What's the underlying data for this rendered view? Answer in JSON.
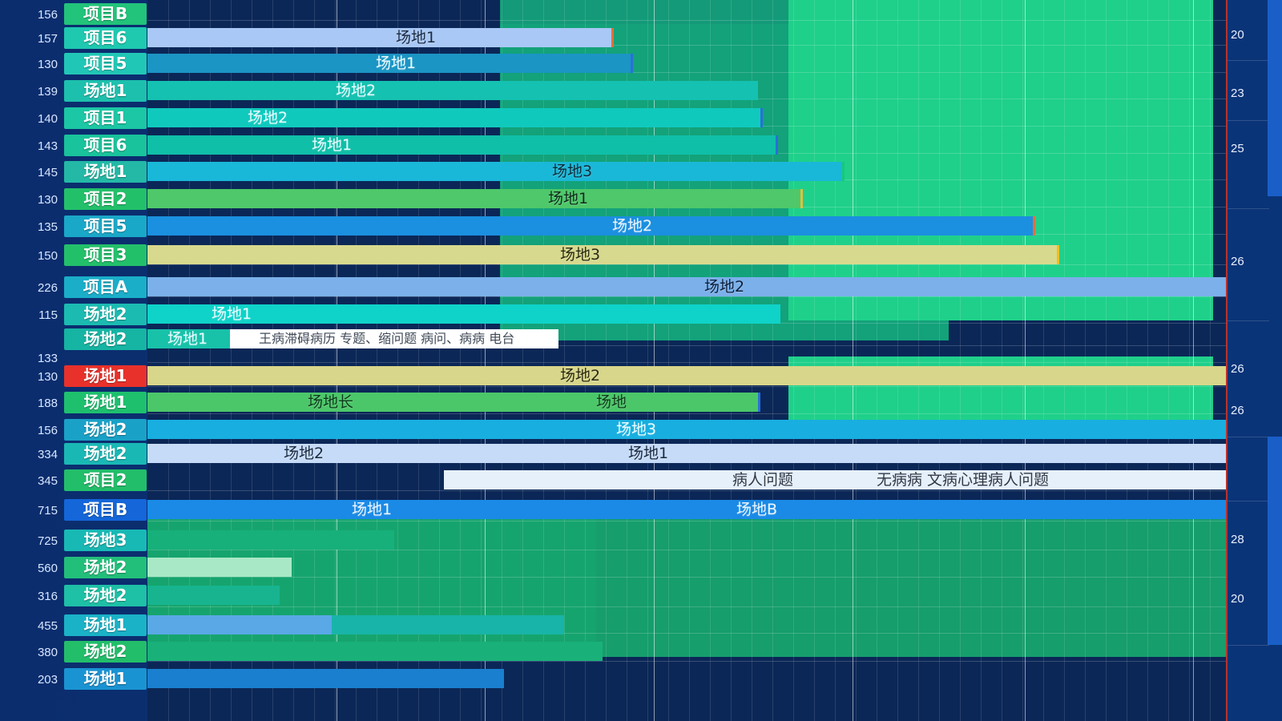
{
  "rows": [
    {
      "num": "156",
      "label": "项目B",
      "color": "#22c37a"
    },
    {
      "num": "157",
      "label": "项目6",
      "color": "#1ec9b0"
    },
    {
      "num": "130",
      "label": "项目5",
      "color": "#21c7b6"
    },
    {
      "num": "139",
      "label": "场地1",
      "color": "#1dc0ad"
    },
    {
      "num": "140",
      "label": "项目1",
      "color": "#1bc7a4"
    },
    {
      "num": "143",
      "label": "项目6",
      "color": "#19c39b"
    },
    {
      "num": "145",
      "label": "场地1",
      "color": "#23b9a6"
    },
    {
      "num": "130",
      "label": "项目2",
      "color": "#23c06a"
    },
    {
      "num": "135",
      "label": "项目5",
      "color": "#1aa8c8"
    },
    {
      "num": "150",
      "label": "项目3",
      "color": "#23c06a"
    },
    {
      "num": "226",
      "label": "项目A",
      "color": "#1aaec9"
    },
    {
      "num": "115",
      "label": "场地2",
      "color": "#1bbbb1"
    },
    {
      "num": "",
      "label": "场地2",
      "color": "#16b4a3"
    },
    {
      "num": "133",
      "label": "",
      "color": ""
    },
    {
      "num": "130",
      "label": "场地1",
      "color": "#e8312a"
    },
    {
      "num": "188",
      "label": "场地1",
      "color": "#1ec06e"
    },
    {
      "num": "156",
      "label": "场地2",
      "color": "#1aa1c7"
    },
    {
      "num": "334",
      "label": "场地2",
      "color": "#1ab8b5"
    },
    {
      "num": "345",
      "label": "项目2",
      "color": "#23be6a"
    },
    {
      "num": "715",
      "label": "项目B",
      "color": "#1466d9"
    },
    {
      "num": "725",
      "label": "场地3",
      "color": "#18b9b5"
    },
    {
      "num": "560",
      "label": "场地2",
      "color": "#22bf7a"
    },
    {
      "num": "316",
      "label": "场地2",
      "color": "#1ec0a6"
    },
    {
      "num": "455",
      "label": "场地1",
      "color": "#1ab2c7"
    },
    {
      "num": "380",
      "label": "场地2",
      "color": "#23be6a"
    },
    {
      "num": "203",
      "label": "场地1",
      "color": "#1a93d2"
    }
  ],
  "bars": [
    {
      "text": "场地1",
      "color": "#a9c8f5",
      "text_color": "#1a2a40"
    },
    {
      "text": "场地1",
      "color": "#1b95c4",
      "text_color": "#e8fbff"
    },
    {
      "text": "场地2",
      "color": "#15c1b0",
      "text_color": "#e8fbff"
    },
    {
      "text": "场地2",
      "color": "#10c9bd",
      "text_color": "#e8fbff"
    },
    {
      "text": "场地1",
      "color": "#10bfa8",
      "text_color": "#e8fbff"
    },
    {
      "text": "场地3",
      "color": "#1ab8d8",
      "text_color": "#0e2a3a"
    },
    {
      "text": "场地1",
      "color": "#4ec86a",
      "text_color": "#0e2a1a"
    },
    {
      "text": "场地2",
      "color": "#1b8fe0",
      "text_color": "#eaf4ff"
    },
    {
      "text": "场地3",
      "color": "#d7d98e",
      "text_color": "#2a2a10"
    },
    {
      "text": "场地2",
      "color": "#7bb0ea",
      "text_color": "#0e1f3a"
    },
    {
      "text": "场地1",
      "color": "#0fd3c8",
      "text_color": "#e8fbff"
    },
    {
      "text": "场地1",
      "color": "#18c2a9",
      "text_color": "#e8fbff",
      "note": "王病滞碍病历 专题、缩问题 病问、病病 电台"
    },
    {
      "text": "场地2",
      "color": "#d8d68b",
      "text_color": "#2a2a10"
    },
    {
      "text": "场地长",
      "text2": "场地",
      "color": "#4bc769",
      "text_color": "#0e3a1a"
    },
    {
      "text": "场地3",
      "color": "#18aee0",
      "text_color": "#e8fbff"
    },
    {
      "text": "场地2",
      "text2": "场地1",
      "color": "#c6dbf8",
      "text_color": "#1a2a40"
    },
    {
      "text": "病人问题",
      "text2": "无病病 文病心理病人问题",
      "color": "#e6f0fa",
      "text_color": "#303848"
    },
    {
      "text": "场地1",
      "text2": "场地B",
      "color": "#1a8ae6",
      "text_color": "#eaf4ff"
    }
  ],
  "right_numbers": [
    "20",
    "23",
    "25",
    "26",
    "26",
    "26",
    "28",
    "20"
  ],
  "colors": {
    "background": "#0b2757",
    "green_zone": "#20c37e",
    "accent_red": "#b8322e"
  }
}
